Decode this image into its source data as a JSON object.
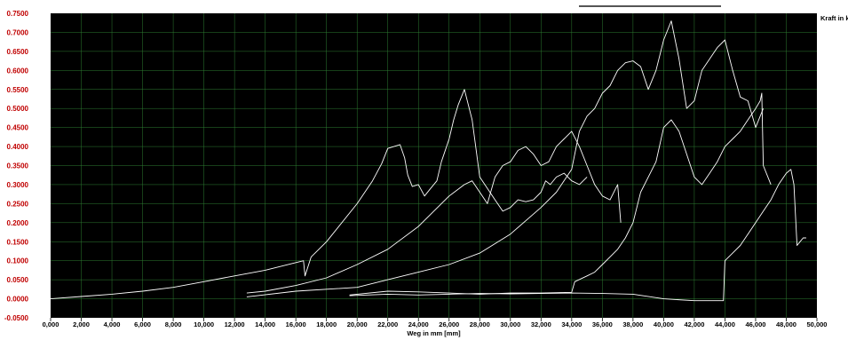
{
  "chart_data": {
    "type": "line",
    "xlabel": "Weg in mm [mm]",
    "ylabel": "Kraft in kN",
    "xlim": [
      0,
      50000
    ],
    "ylim": [
      -0.05,
      0.75
    ],
    "grid": true,
    "background": "#000000",
    "line_color": "#ffffff",
    "grid_color": "#2e7d32",
    "ytick_color": "#c00000",
    "x_ticks": [
      "0,000",
      "2,000",
      "4,000",
      "6,000",
      "8,000",
      "10,000",
      "12,000",
      "14,000",
      "16,000",
      "18,000",
      "20,000",
      "22,000",
      "24,000",
      "26,000",
      "28,000",
      "30,000",
      "32,000",
      "34,000",
      "36,000",
      "38,000",
      "40,000",
      "42,000",
      "44,000",
      "46,000",
      "48,000",
      "50,000"
    ],
    "y_ticks": [
      "0.7500",
      "0.7000",
      "0.6500",
      "0.6000",
      "0.5500",
      "0.5000",
      "0.4500",
      "0.4000",
      "0.3500",
      "0.3000",
      "0.2500",
      "0.2000",
      "0.1500",
      "0.1000",
      "0.0500",
      "0.0000",
      "-0.0500"
    ],
    "series": [
      {
        "x": [
          0,
          2000,
          4000,
          6000,
          8000,
          10000,
          12000,
          14000,
          16000,
          16500,
          16600,
          17000,
          18000,
          20000,
          21000,
          21600,
          22000,
          22400,
          22800,
          23100,
          23300,
          23600,
          24000,
          24400,
          24800,
          25200,
          25500,
          26000,
          26300,
          26600,
          27000,
          27500,
          28000,
          29000,
          29500,
          30000,
          30500,
          31000,
          31500,
          32000,
          32300,
          32600,
          33000,
          33500,
          34000,
          34500,
          35000
        ],
        "y": [
          0.0,
          0.006,
          0.012,
          0.02,
          0.03,
          0.045,
          0.06,
          0.075,
          0.095,
          0.1,
          0.06,
          0.11,
          0.15,
          0.25,
          0.31,
          0.355,
          0.395,
          0.4,
          0.405,
          0.37,
          0.325,
          0.295,
          0.3,
          0.27,
          0.29,
          0.31,
          0.36,
          0.42,
          0.47,
          0.51,
          0.55,
          0.47,
          0.32,
          0.26,
          0.23,
          0.24,
          0.26,
          0.255,
          0.26,
          0.28,
          0.31,
          0.3,
          0.32,
          0.33,
          0.31,
          0.3,
          0.32
        ]
      },
      {
        "x": [
          12800,
          14000,
          16000,
          18000,
          20000,
          22000,
          24000,
          25000,
          26000,
          27000,
          27500,
          28000,
          28500,
          29000,
          29500,
          30000,
          30500,
          31000,
          31500,
          32000,
          32500,
          33000,
          33500,
          34000,
          34500,
          35000,
          35500,
          36000,
          36500,
          37000,
          37200
        ],
        "y": [
          0.015,
          0.02,
          0.035,
          0.055,
          0.09,
          0.13,
          0.19,
          0.23,
          0.27,
          0.3,
          0.31,
          0.28,
          0.25,
          0.32,
          0.35,
          0.36,
          0.39,
          0.4,
          0.38,
          0.35,
          0.36,
          0.4,
          0.42,
          0.44,
          0.4,
          0.35,
          0.3,
          0.27,
          0.26,
          0.3,
          0.2
        ]
      },
      {
        "x": [
          12800,
          16000,
          20000,
          22000,
          24000,
          26000,
          28000,
          30000,
          32000,
          33000,
          34000,
          34500,
          35000,
          35500,
          36000,
          36500,
          37000,
          37500,
          38000,
          38500,
          39000,
          39500,
          40000,
          40500,
          41000,
          41500,
          42000,
          42500,
          43000,
          43500,
          44000,
          44500,
          45000,
          45500,
          46000,
          46500
        ],
        "y": [
          0.005,
          0.02,
          0.03,
          0.05,
          0.07,
          0.09,
          0.12,
          0.17,
          0.24,
          0.28,
          0.34,
          0.44,
          0.48,
          0.5,
          0.54,
          0.56,
          0.6,
          0.62,
          0.625,
          0.61,
          0.55,
          0.6,
          0.68,
          0.73,
          0.63,
          0.5,
          0.52,
          0.6,
          0.63,
          0.66,
          0.68,
          0.6,
          0.53,
          0.52,
          0.45,
          0.5
        ]
      },
      {
        "x": [
          19500,
          22000,
          24000,
          26000,
          28000,
          30000,
          32000,
          33000,
          34000,
          34200,
          35000,
          35500,
          36000,
          36500,
          37000,
          37500,
          38000,
          38500,
          39000,
          39500,
          40000,
          40500,
          41000,
          41500,
          42000,
          42500,
          43000,
          43500,
          44000,
          44500,
          45000,
          45500,
          46000,
          46300,
          46400,
          46500,
          47000
        ],
        "y": [
          0.01,
          0.02,
          0.018,
          0.015,
          0.012,
          0.015,
          0.015,
          0.016,
          0.017,
          0.045,
          0.06,
          0.07,
          0.09,
          0.11,
          0.13,
          0.16,
          0.2,
          0.28,
          0.32,
          0.36,
          0.45,
          0.47,
          0.44,
          0.38,
          0.32,
          0.3,
          0.33,
          0.36,
          0.4,
          0.42,
          0.44,
          0.47,
          0.5,
          0.52,
          0.54,
          0.35,
          0.3
        ]
      },
      {
        "x": [
          19500,
          22000,
          24000,
          26000,
          28000,
          30000,
          32000,
          34000,
          36000,
          38000,
          40000,
          42000,
          43900,
          44000,
          44500,
          45000,
          45500,
          46000,
          46500,
          47000,
          47500,
          48000,
          48300,
          48500,
          48700,
          48900,
          49100,
          49300
        ],
        "y": [
          0.008,
          0.012,
          0.01,
          0.012,
          0.014,
          0.013,
          0.014,
          0.015,
          0.014,
          0.012,
          0.0,
          -0.005,
          -0.005,
          0.1,
          0.12,
          0.14,
          0.17,
          0.2,
          0.23,
          0.26,
          0.3,
          0.33,
          0.34,
          0.3,
          0.14,
          0.15,
          0.16,
          0.16
        ]
      }
    ]
  }
}
